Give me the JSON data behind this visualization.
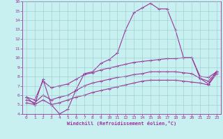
{
  "title": "",
  "xlabel": "Windchill (Refroidissement éolien,°C)",
  "ylabel": "",
  "background_color": "#c8f0f0",
  "line_color": "#993399",
  "grid_color": "#99cccc",
  "axis_color": "#993399",
  "tick_label_color": "#993399",
  "xlabel_color": "#993399",
  "xlim": [
    -0.5,
    23.5
  ],
  "ylim": [
    4,
    16
  ],
  "xticks": [
    0,
    1,
    2,
    3,
    4,
    5,
    6,
    7,
    8,
    9,
    10,
    11,
    12,
    13,
    14,
    15,
    16,
    17,
    18,
    19,
    20,
    21,
    22,
    23
  ],
  "yticks": [
    4,
    5,
    6,
    7,
    8,
    9,
    10,
    11,
    12,
    13,
    14,
    15,
    16
  ],
  "line1_x": [
    0,
    1,
    2,
    3,
    4,
    5,
    6,
    7,
    8,
    9,
    10,
    11,
    12,
    13,
    14,
    15,
    16,
    17,
    18,
    19,
    20,
    21,
    22,
    23
  ],
  "line1_y": [
    5.8,
    5.0,
    7.7,
    5.0,
    4.0,
    4.5,
    6.6,
    8.3,
    8.5,
    9.4,
    9.8,
    10.5,
    13.0,
    14.8,
    15.3,
    15.8,
    15.2,
    15.2,
    13.0,
    10.0,
    10.0,
    7.8,
    7.2,
    8.5
  ],
  "line2_x": [
    0,
    1,
    2,
    3,
    4,
    5,
    6,
    7,
    8,
    9,
    10,
    11,
    12,
    13,
    14,
    15,
    16,
    17,
    18,
    19,
    20,
    21,
    22,
    23
  ],
  "line2_y": [
    5.8,
    5.5,
    7.5,
    6.8,
    7.0,
    7.2,
    7.7,
    8.2,
    8.4,
    8.7,
    8.9,
    9.1,
    9.3,
    9.5,
    9.6,
    9.7,
    9.8,
    9.9,
    9.9,
    10.0,
    10.0,
    8.0,
    7.9,
    8.5
  ],
  "line3_x": [
    0,
    1,
    2,
    3,
    4,
    5,
    6,
    7,
    8,
    9,
    10,
    11,
    12,
    13,
    14,
    15,
    16,
    17,
    18,
    19,
    20,
    21,
    22,
    23
  ],
  "line3_y": [
    5.5,
    5.2,
    6.0,
    5.5,
    5.8,
    6.0,
    6.5,
    7.0,
    7.3,
    7.5,
    7.7,
    7.9,
    8.0,
    8.2,
    8.3,
    8.5,
    8.5,
    8.5,
    8.5,
    8.4,
    8.3,
    7.8,
    7.5,
    8.5
  ],
  "line4_x": [
    0,
    1,
    2,
    3,
    4,
    5,
    6,
    7,
    8,
    9,
    10,
    11,
    12,
    13,
    14,
    15,
    16,
    17,
    18,
    19,
    20,
    21,
    22,
    23
  ],
  "line4_y": [
    5.2,
    5.0,
    5.5,
    5.0,
    5.2,
    5.5,
    5.8,
    6.0,
    6.3,
    6.5,
    6.7,
    6.9,
    7.1,
    7.3,
    7.5,
    7.6,
    7.6,
    7.6,
    7.6,
    7.5,
    7.4,
    7.3,
    7.1,
    8.3
  ]
}
